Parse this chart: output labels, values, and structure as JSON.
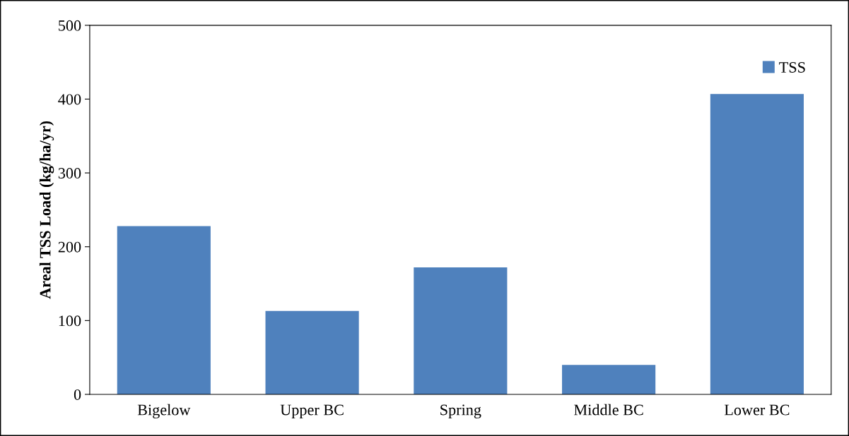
{
  "chart_data": {
    "type": "bar",
    "ylabel": "Areal TSS Load (kg/ha/yr)",
    "categories": [
      "Bigelow",
      "Upper BC",
      "Spring",
      "Middle BC",
      "Lower BC"
    ],
    "series": [
      {
        "name": "TSS",
        "color": "#4f81bd",
        "values": [
          228,
          113,
          172,
          40,
          407
        ]
      }
    ],
    "ylim": [
      0,
      500
    ],
    "yticks": [
      0,
      100,
      200,
      300,
      400,
      500
    ],
    "grid": false,
    "legend": "top right"
  }
}
